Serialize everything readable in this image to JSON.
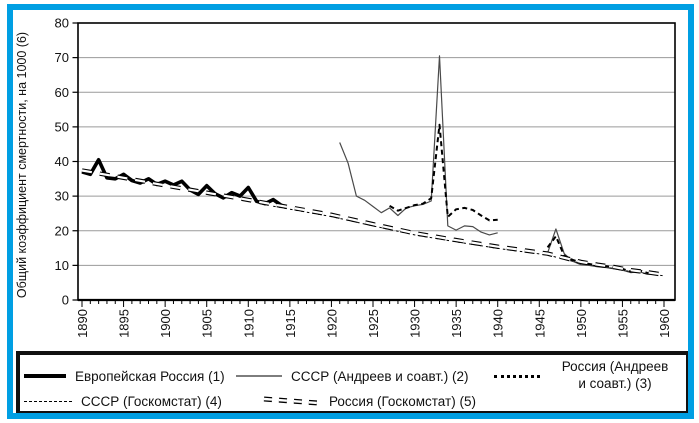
{
  "frame": {
    "border_color": "#009FE3"
  },
  "chart_data": {
    "type": "line",
    "title": "",
    "xlabel": "",
    "ylabel": "Общий коэффициент смертности, на 1000 (6)",
    "ylim": [
      0,
      80
    ],
    "xlim": [
      1890,
      1960
    ],
    "y_ticks": [
      0,
      10,
      20,
      30,
      40,
      50,
      60,
      70,
      80
    ],
    "x_tick_labels": [
      1890,
      1895,
      1900,
      1905,
      1910,
      1915,
      1920,
      1925,
      1930,
      1935,
      1940,
      1945,
      1950,
      1955,
      1960
    ],
    "x_minor_tick_step": 1,
    "grid": "horizontal",
    "legend_position": "bottom-box",
    "series": [
      {
        "name": "Европейская Россия (1)",
        "style": "thick-solid",
        "color": "#000000",
        "points": [
          [
            1890,
            37
          ],
          [
            1891,
            36.3
          ],
          [
            1892,
            40.5
          ],
          [
            1893,
            35.3
          ],
          [
            1894,
            35
          ],
          [
            1895,
            36.3
          ],
          [
            1896,
            34.5
          ],
          [
            1897,
            33.8
          ],
          [
            1898,
            35
          ],
          [
            1899,
            33.4
          ],
          [
            1900,
            34.3
          ],
          [
            1901,
            33.2
          ],
          [
            1902,
            34.3
          ],
          [
            1903,
            31.8
          ],
          [
            1904,
            30.5
          ],
          [
            1905,
            33
          ],
          [
            1906,
            30.7
          ],
          [
            1907,
            29.5
          ],
          [
            1908,
            31
          ],
          [
            1909,
            30
          ],
          [
            1910,
            32.5
          ],
          [
            1911,
            28.5
          ],
          [
            1912,
            27.8
          ],
          [
            1913,
            29
          ],
          [
            1914,
            27.3
          ]
        ]
      },
      {
        "name": "СССР (Андреев и соавт.) (2)",
        "style": "thin-solid",
        "color": "#4a4a4a",
        "points": [
          [
            1921,
            45.5
          ],
          [
            1922,
            39.5
          ],
          [
            1923,
            30
          ],
          [
            1924,
            28.8
          ],
          [
            1925,
            27
          ],
          [
            1926,
            25.2
          ],
          [
            1927,
            26.6
          ],
          [
            1928,
            24.4
          ],
          [
            1929,
            26.6
          ],
          [
            1930,
            27.2
          ],
          [
            1931,
            27.6
          ],
          [
            1932,
            28.6
          ],
          [
            1933,
            70.5
          ],
          [
            1934,
            21.4
          ],
          [
            1935,
            20.2
          ],
          [
            1936,
            21.4
          ],
          [
            1937,
            21.2
          ],
          [
            1938,
            19.6
          ],
          [
            1939,
            18.8
          ],
          [
            1940,
            19.4
          ],
          null,
          [
            1946,
            13.6
          ],
          [
            1947,
            20.5
          ],
          [
            1948,
            13.4
          ],
          [
            1949,
            11.2
          ],
          [
            1950,
            10.2
          ],
          [
            1951,
            10
          ],
          [
            1952,
            9.6
          ],
          [
            1953,
            9.4
          ],
          [
            1954,
            9
          ],
          [
            1955,
            8.6
          ],
          [
            1956,
            7.9
          ],
          [
            1957,
            8.2
          ],
          [
            1958,
            7.4
          ],
          [
            1959,
            7.6
          ]
        ]
      },
      {
        "name": "Россия (Андреев и соавт.) (3)",
        "style": "bold-dotted",
        "color": "#000000",
        "points": [
          [
            1927,
            27.2
          ],
          [
            1928,
            25.8
          ],
          [
            1929,
            26.6
          ],
          [
            1930,
            27.4
          ],
          [
            1931,
            27.8
          ],
          [
            1932,
            29.4
          ],
          [
            1933,
            50.6
          ],
          [
            1934,
            24
          ],
          [
            1935,
            26.2
          ],
          [
            1936,
            26.6
          ],
          [
            1937,
            26
          ],
          [
            1938,
            24.4
          ],
          [
            1939,
            23
          ],
          [
            1940,
            23.2
          ],
          null,
          [
            1946,
            15.2
          ],
          [
            1947,
            18.4
          ],
          [
            1948,
            12.8
          ],
          [
            1949,
            11.6
          ],
          [
            1950,
            10.8
          ],
          [
            1951,
            10.4
          ],
          [
            1952,
            10
          ],
          [
            1953,
            9.8
          ],
          [
            1954,
            9.4
          ],
          [
            1955,
            9
          ],
          [
            1956,
            8.2
          ],
          [
            1957,
            8.6
          ],
          [
            1958,
            7.8
          ],
          [
            1959,
            8
          ]
        ]
      },
      {
        "name": "СССР (Госкомстат) (4)",
        "style": "fine-dashed",
        "color": "#000000",
        "points": [
          [
            1913,
            27.1
          ],
          [
            1920,
            24.1
          ],
          [
            1925,
            21.4
          ],
          [
            1930,
            18.8
          ],
          [
            1935,
            16.8
          ],
          [
            1940,
            14.9
          ],
          [
            1946,
            13
          ],
          [
            1948,
            11.8
          ],
          [
            1950,
            10.6
          ],
          [
            1952,
            9.8
          ],
          [
            1954,
            9.1
          ],
          [
            1956,
            8.2
          ],
          [
            1958,
            7.6
          ],
          [
            1960,
            7
          ]
        ]
      },
      {
        "name": "Россия (Госкомстат) (5)",
        "style": "outlined-dash",
        "color": "#000000",
        "points": [
          [
            1890,
            37.4
          ],
          [
            1895,
            35.3
          ],
          [
            1900,
            33.1
          ],
          [
            1905,
            31
          ],
          [
            1910,
            28.9
          ],
          [
            1913,
            27.6
          ],
          [
            1920,
            24.6
          ],
          [
            1925,
            21.9
          ],
          [
            1930,
            19.3
          ],
          [
            1935,
            17.3
          ],
          [
            1940,
            15.4
          ],
          [
            1946,
            13.4
          ],
          [
            1948,
            12.2
          ],
          [
            1950,
            11
          ],
          [
            1952,
            10.2
          ],
          [
            1954,
            9.5
          ],
          [
            1956,
            8.6
          ],
          [
            1958,
            8
          ],
          [
            1960,
            7.3
          ]
        ]
      }
    ]
  },
  "legend": {
    "rows": [
      [
        {
          "series": 0,
          "label": "Европейская Россия (1)"
        },
        {
          "series": 1,
          "label": "СССР (Андреев и соавт.) (2)"
        },
        {
          "series": 2,
          "label": "Россия (Андреев\nи соавт.) (3)"
        }
      ],
      [
        {
          "series": 3,
          "label": "СССР (Госкомстат) (4)"
        },
        {
          "series": 4,
          "label": "Россия (Госкомстат) (5)"
        }
      ]
    ]
  }
}
